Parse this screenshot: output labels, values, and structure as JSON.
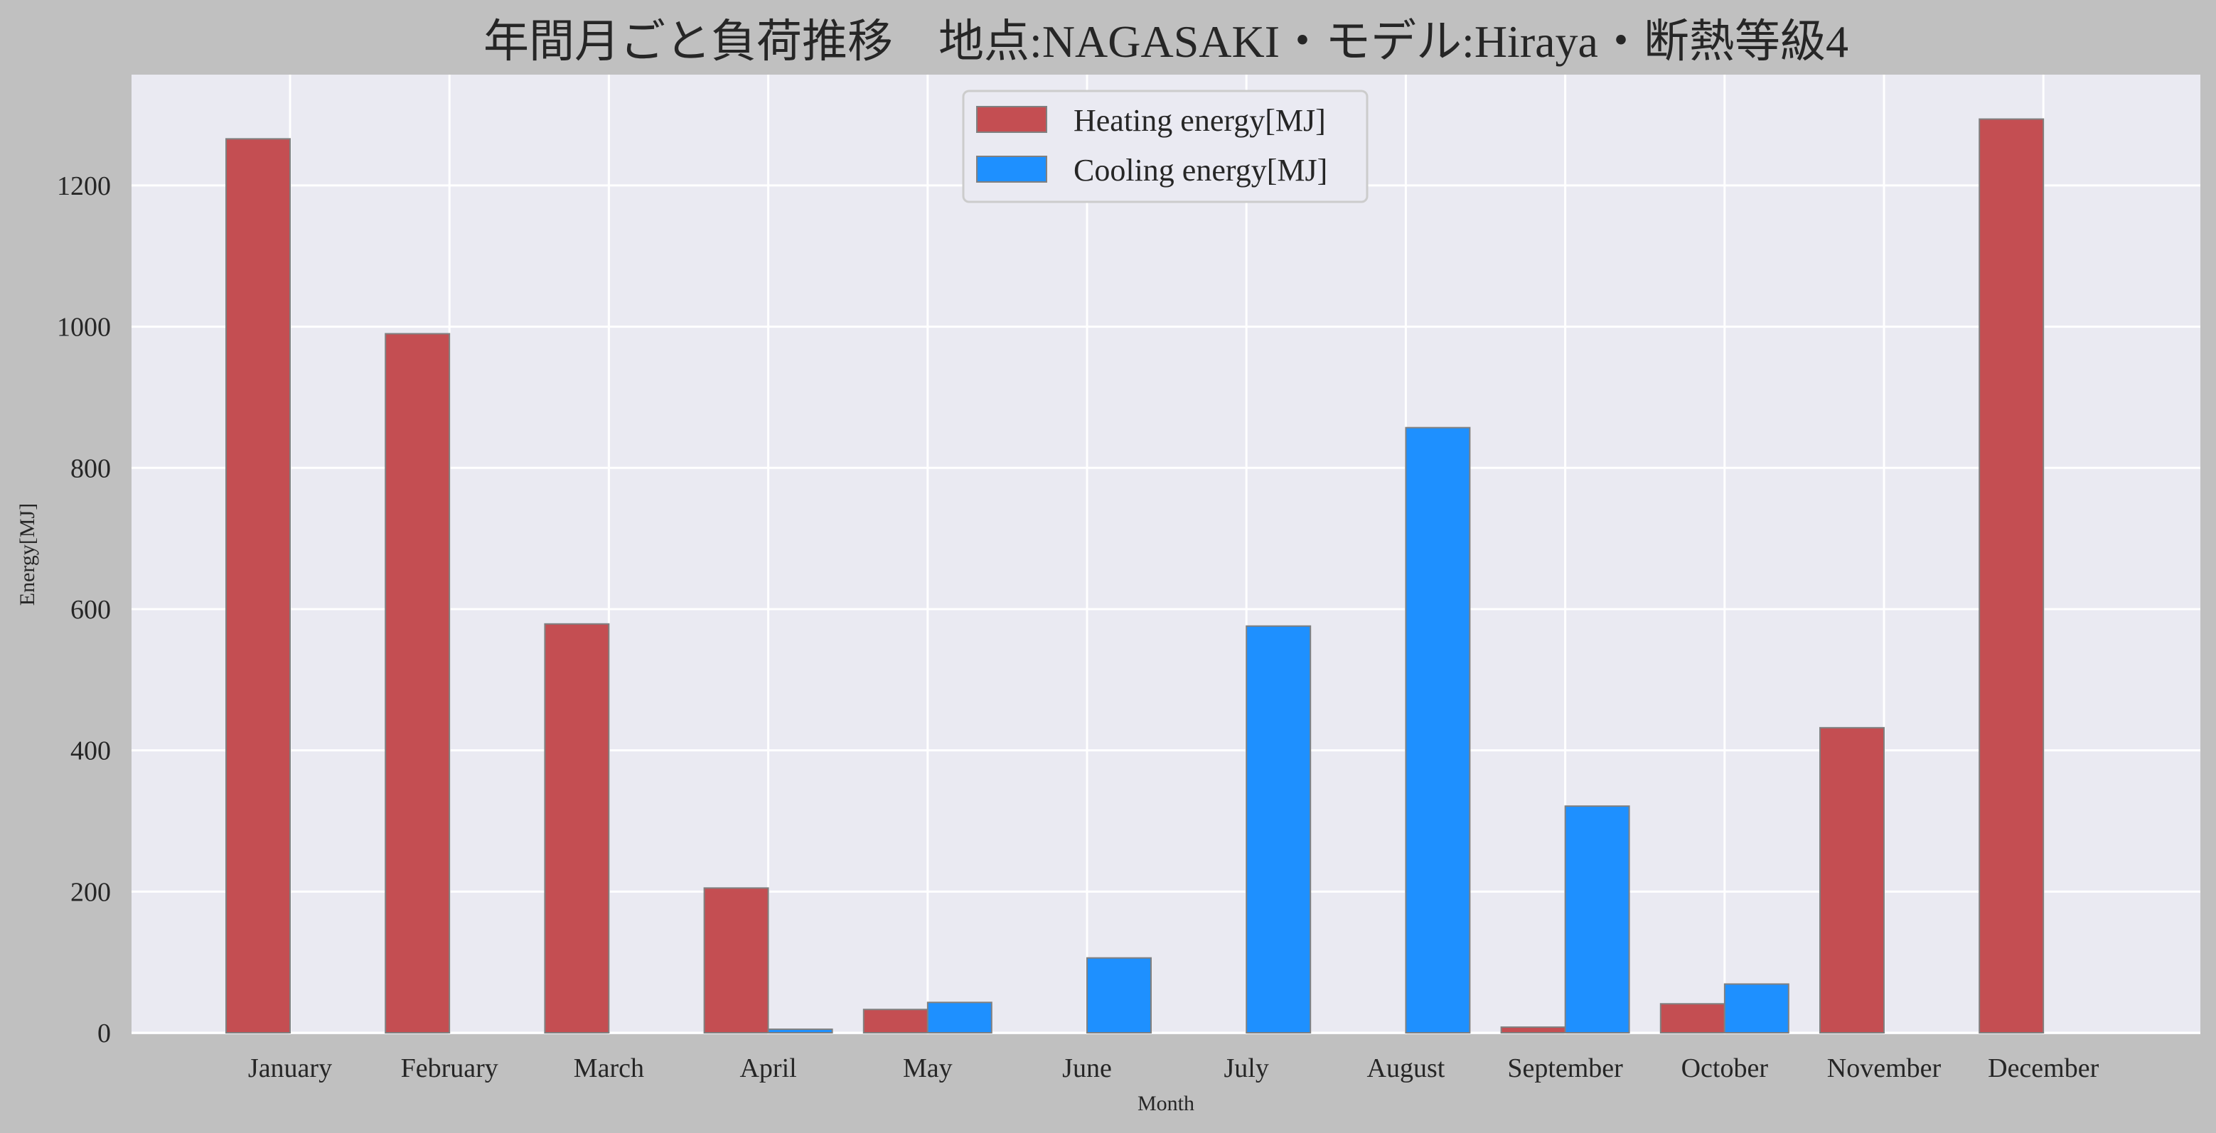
{
  "chart_data": {
    "type": "bar",
    "title": "年間月ごと負荷推移　地点:NAGASAKI・モデル:Hiraya・断熱等級4",
    "xlabel": "Month",
    "ylabel": "Energy[MJ]",
    "ylim": [
      0,
      1360
    ],
    "yticks": [
      "0",
      "200",
      "400",
      "600",
      "800",
      "1000",
      "1200"
    ],
    "categories": [
      "January",
      "February",
      "March",
      "April",
      "May",
      "June",
      "July",
      "August",
      "September",
      "October",
      "November",
      "December"
    ],
    "series": [
      {
        "name": "Heating energy[MJ]",
        "color": "#c44e52",
        "values": [
          1266,
          990,
          579,
          205,
          33,
          0,
          0,
          0,
          8,
          41,
          432,
          1294
        ]
      },
      {
        "name": "Cooling energy[MJ]",
        "color": "#1e90ff",
        "values": [
          0,
          0,
          0,
          5,
          43,
          106,
          576,
          857,
          321,
          69,
          0,
          0
        ]
      }
    ],
    "grid": true,
    "legend_position": "top-center"
  },
  "colors": {
    "figure_background": "#c0c0c0",
    "plot_background": "#eaeaf2",
    "grid": "#ffffff",
    "bar_edge": "#808080"
  }
}
